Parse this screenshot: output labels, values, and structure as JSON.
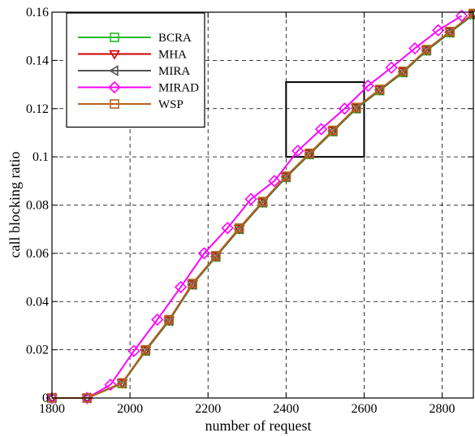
{
  "chart_data": {
    "type": "line",
    "xlabel": "number of request",
    "ylabel": "call blocking ratio",
    "xlim": [
      1800,
      2880
    ],
    "ylim": [
      0,
      0.16
    ],
    "x_ticks": [
      1800,
      2000,
      2200,
      2400,
      2600,
      2800
    ],
    "x_tick_labels": [
      "1800",
      "2000",
      "2200",
      "2400",
      "2600",
      "2800"
    ],
    "y_ticks": [
      0,
      0.02,
      0.04,
      0.06,
      0.08,
      0.1,
      0.12,
      0.14,
      0.16
    ],
    "y_tick_labels": [
      "0",
      "0.02",
      "0.04",
      "0.06",
      "0.08",
      "0.1",
      "0.12",
      "0.14",
      "0.16"
    ],
    "grid": true,
    "grid_style": "dashed",
    "legend_position": "top-left",
    "zoom_box": {
      "x": [
        2400,
        2600
      ],
      "y": [
        0.1,
        0.131
      ]
    },
    "series": [
      {
        "name": "BCRA",
        "color": "#22bb22",
        "marker": "square",
        "x": [
          1800,
          1890,
          1980,
          2040,
          2100,
          2160,
          2220,
          2280,
          2340,
          2400,
          2460,
          2520,
          2580,
          2640,
          2700,
          2760,
          2820,
          2880
        ],
        "y": [
          0,
          0,
          0.006,
          0.0195,
          0.032,
          0.047,
          0.0585,
          0.07,
          0.081,
          0.0915,
          0.101,
          0.1105,
          0.12,
          0.1275,
          0.135,
          0.144,
          0.1515,
          0.159
        ]
      },
      {
        "name": "MHA",
        "color": "#cc0000",
        "marker": "triangle-down",
        "x": [
          1800,
          1890,
          1980,
          2040,
          2100,
          2160,
          2220,
          2280,
          2340,
          2400,
          2460,
          2520,
          2580,
          2640,
          2700,
          2760,
          2820,
          2880
        ],
        "y": [
          0,
          0,
          0.0062,
          0.0198,
          0.0322,
          0.0472,
          0.0588,
          0.0702,
          0.0812,
          0.0918,
          0.1013,
          0.1108,
          0.1203,
          0.1278,
          0.1353,
          0.1443,
          0.1518,
          0.1592
        ]
      },
      {
        "name": "MIRA",
        "color": "#555555",
        "marker": "triangle-left",
        "x": [
          1800,
          1890,
          1980,
          2040,
          2100,
          2160,
          2220,
          2280,
          2340,
          2400,
          2460,
          2520,
          2580,
          2640,
          2700,
          2760,
          2820,
          2880
        ],
        "y": [
          0,
          0,
          0.0061,
          0.0197,
          0.0321,
          0.0471,
          0.0587,
          0.0701,
          0.0811,
          0.0917,
          0.1012,
          0.1107,
          0.1202,
          0.1277,
          0.1352,
          0.1442,
          0.1517,
          0.1591
        ]
      },
      {
        "name": "MIRAD",
        "color": "#ff00ff",
        "marker": "diamond",
        "x": [
          1800,
          1890,
          1950,
          2010,
          2070,
          2130,
          2190,
          2250,
          2310,
          2370,
          2430,
          2490,
          2550,
          2610,
          2670,
          2730,
          2790,
          2850
        ],
        "y": [
          0,
          0,
          0.0055,
          0.0195,
          0.0325,
          0.046,
          0.06,
          0.0705,
          0.0825,
          0.09,
          0.1025,
          0.1115,
          0.12,
          0.1295,
          0.137,
          0.145,
          0.1525,
          0.1585
        ]
      },
      {
        "name": "WSP",
        "color": "#b8621b",
        "marker": "square",
        "x": [
          1800,
          1890,
          1980,
          2040,
          2100,
          2160,
          2220,
          2280,
          2340,
          2400,
          2460,
          2520,
          2580,
          2640,
          2700,
          2760,
          2820,
          2880
        ],
        "y": [
          0,
          0,
          0.0063,
          0.02,
          0.0325,
          0.0475,
          0.059,
          0.0705,
          0.0815,
          0.092,
          0.1015,
          0.111,
          0.1205,
          0.128,
          0.1355,
          0.1445,
          0.152,
          0.1595
        ]
      }
    ]
  }
}
